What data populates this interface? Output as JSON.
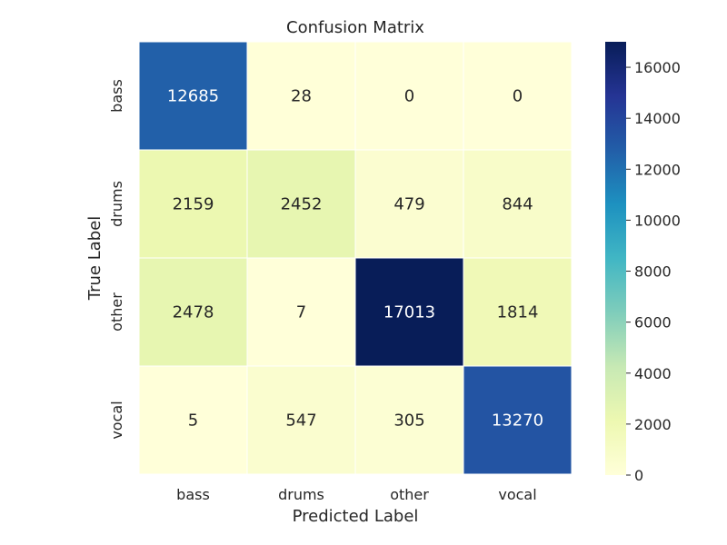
{
  "chart_data": {
    "type": "heatmap",
    "title": "Confusion Matrix",
    "xlabel": "Predicted Label",
    "ylabel": "True Label",
    "x_categories": [
      "bass",
      "drums",
      "other",
      "vocal"
    ],
    "y_categories": [
      "bass",
      "drums",
      "other",
      "vocal"
    ],
    "values": [
      [
        12685,
        28,
        0,
        0
      ],
      [
        2159,
        2452,
        479,
        844
      ],
      [
        2478,
        7,
        17013,
        1814
      ],
      [
        5,
        547,
        305,
        13270
      ]
    ],
    "colormap": "YlGnBu",
    "color_range": [
      0,
      17013
    ],
    "colorbar_ticks": [
      0,
      2000,
      4000,
      6000,
      8000,
      10000,
      12000,
      14000,
      16000
    ],
    "colorbar_tick_labels": [
      "0",
      "2000",
      "4000",
      "6000",
      "8000",
      "10000",
      "12000",
      "14000",
      "16000"
    ],
    "colorbar_stops": [
      "#ffffd9",
      "#edf8b1",
      "#c7e9b4",
      "#7fcdbb",
      "#41b6c4",
      "#1d91c0",
      "#225ea8",
      "#253494",
      "#081d58"
    ],
    "annotation_light_color": "#ffffff",
    "annotation_dark_color": "#262626"
  }
}
